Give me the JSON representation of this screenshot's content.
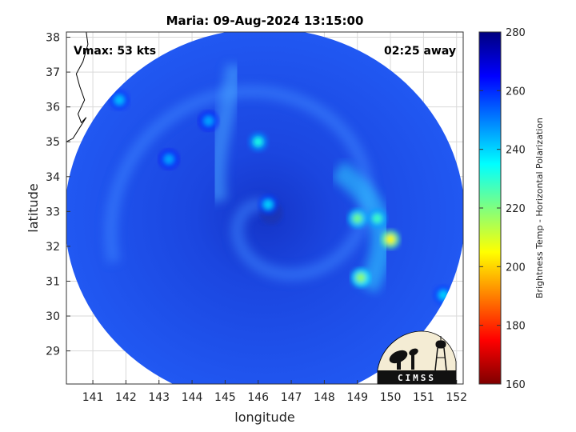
{
  "chart_data": {
    "type": "heatmap",
    "title": "Maria: 09-Aug-2024 13:15:00",
    "xlabel": "longitude",
    "ylabel": "latitude",
    "xlim": [
      140.2,
      152.2
    ],
    "ylim": [
      28.05,
      38.15
    ],
    "x_ticks": [
      141,
      142,
      143,
      144,
      145,
      146,
      147,
      148,
      149,
      150,
      151,
      152
    ],
    "y_ticks": [
      29,
      30,
      31,
      32,
      33,
      34,
      35,
      36,
      37,
      38
    ],
    "grid": true,
    "colorbar": {
      "label": "Brightness Temp - Horizontal Polarization",
      "range": [
        160,
        280
      ],
      "ticks": [
        160,
        180,
        200,
        220,
        240,
        260,
        280
      ],
      "colormap": "jet"
    },
    "annotations": {
      "vmax": "Vmax: 53 kts",
      "time_away": "02:25 away"
    },
    "swath": {
      "center_lon": 146.2,
      "center_lat": 32.85,
      "radius_lon": 6.05,
      "radius_lat": 5.4,
      "background_temp": 268
    },
    "storm_center": {
      "lon": 146.4,
      "lat": 32.95
    },
    "features": [
      {
        "lon": 150.0,
        "lat": 32.2,
        "temp": 205
      },
      {
        "lon": 149.6,
        "lat": 32.8,
        "temp": 228
      },
      {
        "lon": 149.0,
        "lat": 32.8,
        "temp": 222
      },
      {
        "lon": 149.1,
        "lat": 31.1,
        "temp": 218
      },
      {
        "lon": 146.0,
        "lat": 35.0,
        "temp": 232
      },
      {
        "lon": 144.5,
        "lat": 35.6,
        "temp": 245
      },
      {
        "lon": 141.8,
        "lat": 36.2,
        "temp": 242
      },
      {
        "lon": 146.3,
        "lat": 33.2,
        "temp": 240
      },
      {
        "lon": 151.6,
        "lat": 30.6,
        "temp": 240
      },
      {
        "lon": 143.3,
        "lat": 34.5,
        "temp": 245
      }
    ],
    "coastline": [
      [
        140.8,
        38.15
      ],
      [
        140.85,
        37.8
      ],
      [
        140.7,
        37.3
      ],
      [
        140.5,
        36.95
      ],
      [
        140.6,
        36.6
      ],
      [
        140.75,
        36.2
      ],
      [
        140.55,
        35.8
      ],
      [
        140.65,
        35.55
      ],
      [
        140.8,
        35.7
      ],
      [
        140.6,
        35.4
      ],
      [
        140.4,
        35.1
      ],
      [
        140.2,
        35.0
      ]
    ]
  },
  "logo": {
    "text": "CIMSS"
  },
  "colors": {
    "frame": "#333333",
    "grid": "#d9d9d9",
    "swath_base": "#1d48e8"
  }
}
